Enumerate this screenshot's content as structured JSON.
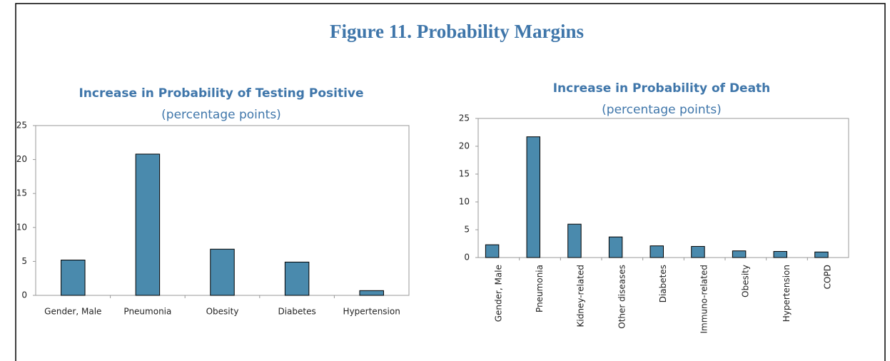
{
  "figure_title": "Figure 11. Probability Margins",
  "chart_data": [
    {
      "type": "bar",
      "title": "Increase in Probability of Testing Positive",
      "subtitle": "(percentage points)",
      "categories": [
        "Gender, Male",
        "Pneumonia",
        "Obesity",
        "Diabetes",
        "Hypertension"
      ],
      "values": [
        5.2,
        20.8,
        6.8,
        4.9,
        0.7
      ],
      "color": "#4a8aad",
      "ylim": [
        0,
        25
      ],
      "yticks": [
        0,
        5,
        10,
        15,
        20,
        25
      ],
      "label_rotation": 0
    },
    {
      "type": "bar",
      "title": "Increase in Probability of Death",
      "subtitle": "(percentage points)",
      "categories": [
        "Gender, Male",
        "Pneumonia",
        "Kidney-related",
        "Other diseases",
        "Diabetes",
        "Immuno-related",
        "Obesity",
        "Hypertension",
        "COPD"
      ],
      "values": [
        2.3,
        21.7,
        6.0,
        3.7,
        2.1,
        2.0,
        1.2,
        1.1,
        1.0
      ],
      "color": "#4a8aad",
      "ylim": [
        0,
        25
      ],
      "yticks": [
        0,
        5,
        10,
        15,
        20,
        25
      ],
      "label_rotation": -90
    }
  ]
}
